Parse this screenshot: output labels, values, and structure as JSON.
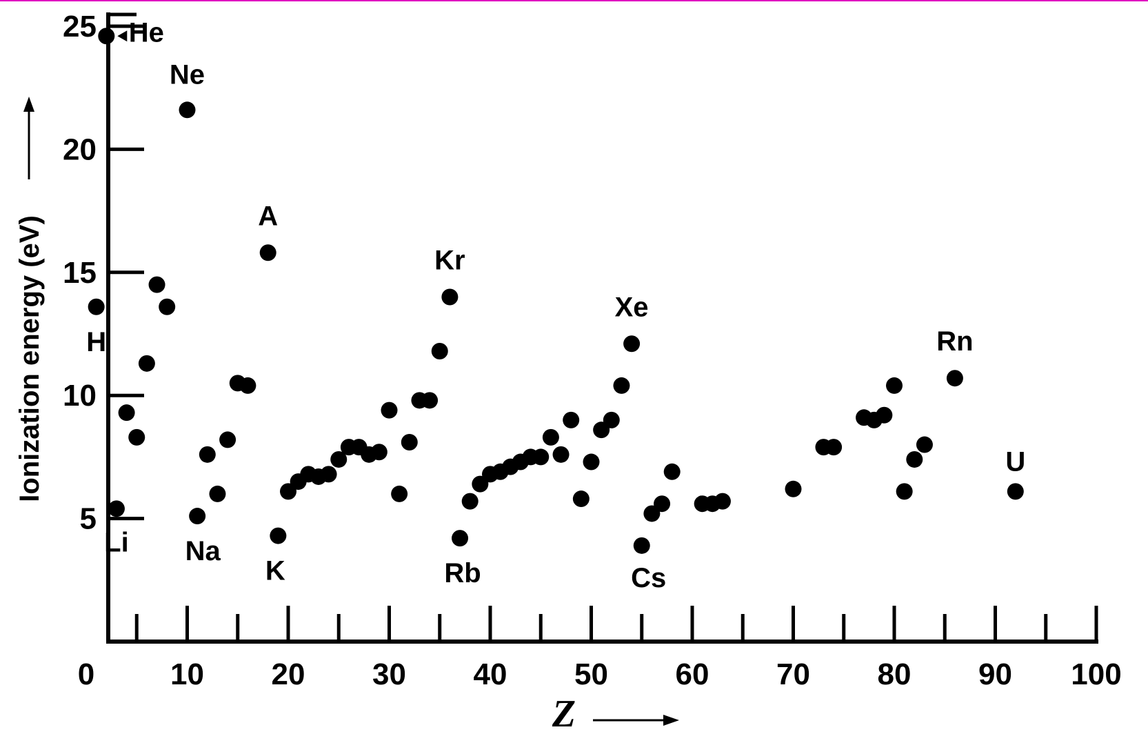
{
  "chart_data": {
    "type": "scatter",
    "title": "",
    "xlabel": "Z",
    "ylabel": "Ionization energy (eV)",
    "xlim": [
      0,
      100
    ],
    "ylim": [
      0,
      25
    ],
    "x_ticks": [
      0,
      10,
      20,
      30,
      40,
      50,
      60,
      70,
      80,
      90,
      100
    ],
    "y_ticks": [
      5,
      10,
      15,
      20,
      25
    ],
    "grid": false,
    "legend": "none",
    "colors": {
      "marker": "#000000",
      "axis": "#000000",
      "frame": "#e000c0"
    },
    "points": [
      {
        "x": 1,
        "y": 13.6
      },
      {
        "x": 2,
        "y": 24.6
      },
      {
        "x": 3,
        "y": 5.4
      },
      {
        "x": 4,
        "y": 9.3
      },
      {
        "x": 5,
        "y": 8.3
      },
      {
        "x": 6,
        "y": 11.3
      },
      {
        "x": 7,
        "y": 14.5
      },
      {
        "x": 8,
        "y": 13.6
      },
      {
        "x": 10,
        "y": 21.6
      },
      {
        "x": 11,
        "y": 5.1
      },
      {
        "x": 12,
        "y": 7.6
      },
      {
        "x": 13,
        "y": 6.0
      },
      {
        "x": 14,
        "y": 8.2
      },
      {
        "x": 15,
        "y": 10.5
      },
      {
        "x": 16,
        "y": 10.4
      },
      {
        "x": 18,
        "y": 15.8
      },
      {
        "x": 19,
        "y": 4.3
      },
      {
        "x": 20,
        "y": 6.1
      },
      {
        "x": 21,
        "y": 6.5
      },
      {
        "x": 22,
        "y": 6.8
      },
      {
        "x": 23,
        "y": 6.7
      },
      {
        "x": 24,
        "y": 6.8
      },
      {
        "x": 25,
        "y": 7.4
      },
      {
        "x": 26,
        "y": 7.9
      },
      {
        "x": 27,
        "y": 7.9
      },
      {
        "x": 28,
        "y": 7.6
      },
      {
        "x": 29,
        "y": 7.7
      },
      {
        "x": 30,
        "y": 9.4
      },
      {
        "x": 31,
        "y": 6.0
      },
      {
        "x": 32,
        "y": 8.1
      },
      {
        "x": 33,
        "y": 9.8
      },
      {
        "x": 34,
        "y": 9.8
      },
      {
        "x": 35,
        "y": 11.8
      },
      {
        "x": 36,
        "y": 14.0
      },
      {
        "x": 37,
        "y": 4.2
      },
      {
        "x": 38,
        "y": 5.7
      },
      {
        "x": 39,
        "y": 6.4
      },
      {
        "x": 40,
        "y": 6.8
      },
      {
        "x": 41,
        "y": 6.9
      },
      {
        "x": 42,
        "y": 7.1
      },
      {
        "x": 43,
        "y": 7.3
      },
      {
        "x": 44,
        "y": 7.5
      },
      {
        "x": 45,
        "y": 7.5
      },
      {
        "x": 46,
        "y": 8.3
      },
      {
        "x": 47,
        "y": 7.6
      },
      {
        "x": 48,
        "y": 9.0
      },
      {
        "x": 49,
        "y": 5.8
      },
      {
        "x": 50,
        "y": 7.3
      },
      {
        "x": 51,
        "y": 8.6
      },
      {
        "x": 52,
        "y": 9.0
      },
      {
        "x": 53,
        "y": 10.4
      },
      {
        "x": 54,
        "y": 12.1
      },
      {
        "x": 55,
        "y": 3.9
      },
      {
        "x": 56,
        "y": 5.2
      },
      {
        "x": 57,
        "y": 5.6
      },
      {
        "x": 58,
        "y": 6.9
      },
      {
        "x": 61,
        "y": 5.6
      },
      {
        "x": 62,
        "y": 5.6
      },
      {
        "x": 63,
        "y": 5.7
      },
      {
        "x": 70,
        "y": 6.2
      },
      {
        "x": 73,
        "y": 7.9
      },
      {
        "x": 74,
        "y": 7.9
      },
      {
        "x": 77,
        "y": 9.1
      },
      {
        "x": 78,
        "y": 9.0
      },
      {
        "x": 79,
        "y": 9.2
      },
      {
        "x": 80,
        "y": 10.4
      },
      {
        "x": 81,
        "y": 6.1
      },
      {
        "x": 82,
        "y": 7.4
      },
      {
        "x": 83,
        "y": 8.0
      },
      {
        "x": 86,
        "y": 10.7
      },
      {
        "x": 92,
        "y": 6.1
      }
    ],
    "annotations": [
      {
        "text": "He",
        "x": 2,
        "y": 24.6
      },
      {
        "text": "Ne",
        "x": 10,
        "y": 21.6
      },
      {
        "text": "A",
        "x": 18,
        "y": 15.8
      },
      {
        "text": "Kr",
        "x": 36,
        "y": 14.0
      },
      {
        "text": "Xe",
        "x": 54,
        "y": 12.1
      },
      {
        "text": "Rn",
        "x": 86,
        "y": 10.7
      },
      {
        "text": "H",
        "x": 1,
        "y": 13.6
      },
      {
        "text": "Li",
        "x": 3,
        "y": 5.4
      },
      {
        "text": "Na",
        "x": 11,
        "y": 5.1
      },
      {
        "text": "K",
        "x": 19,
        "y": 4.3
      },
      {
        "text": "Rb",
        "x": 37,
        "y": 4.2
      },
      {
        "text": "Cs",
        "x": 55,
        "y": 3.9
      },
      {
        "text": "U",
        "x": 92,
        "y": 6.1
      }
    ]
  }
}
